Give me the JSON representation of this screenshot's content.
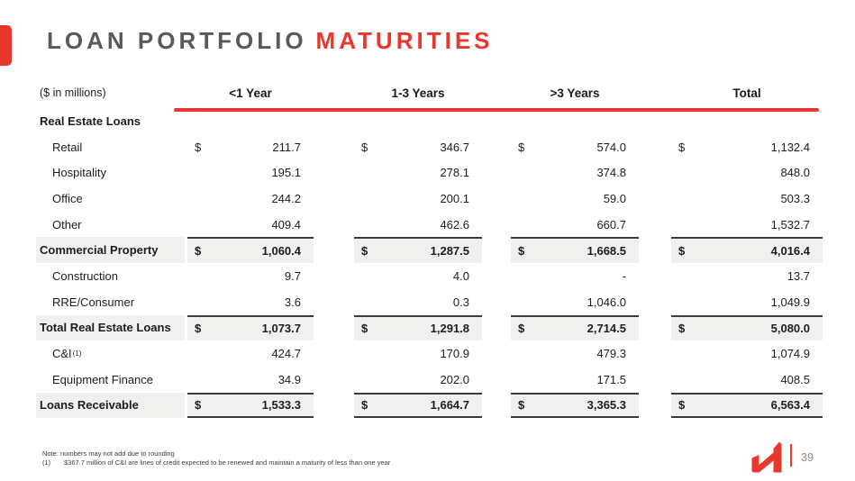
{
  "slide": {
    "title_primary": "LOAN PORTFOLIO",
    "title_accent": "MATURITIES",
    "units_label": "($ in millions)"
  },
  "colors": {
    "accent_red": "#e9372d",
    "title_gray": "#58595b",
    "row_shade": "#f0f0ef",
    "rule_dark": "#3b3b3b"
  },
  "table": {
    "columns": [
      "<1 Year",
      "1-3 Years",
      ">3 Years",
      "Total"
    ],
    "rows": [
      {
        "label": "Real Estate Loans",
        "bold": true,
        "indent": false
      },
      {
        "label": "Retail",
        "indent": true,
        "dollar": true,
        "values": [
          "211.7",
          "346.7",
          "574.0",
          "1,132.4"
        ]
      },
      {
        "label": "Hospitality",
        "indent": true,
        "values": [
          "195.1",
          "278.1",
          "374.8",
          "848.0"
        ]
      },
      {
        "label": "Office",
        "indent": true,
        "values": [
          "244.2",
          "200.1",
          "59.0",
          "503.3"
        ]
      },
      {
        "label": "Other",
        "indent": true,
        "values": [
          "409.4",
          "462.6",
          "660.7",
          "1,532.7"
        ]
      },
      {
        "label": "Commercial Property",
        "bold": true,
        "shaded": true,
        "border_top": true,
        "dollar": true,
        "values": [
          "1,060.4",
          "1,287.5",
          "1,668.5",
          "4,016.4"
        ]
      },
      {
        "label": "Construction",
        "indent": true,
        "values": [
          "9.7",
          "4.0",
          "-",
          "13.7"
        ]
      },
      {
        "label": "RRE/Consumer",
        "indent": true,
        "values": [
          "3.6",
          "0.3",
          "1,046.0",
          "1,049.9"
        ]
      },
      {
        "label": "Total Real Estate Loans",
        "bold": true,
        "shaded": true,
        "border_top": true,
        "dollar": true,
        "values": [
          "1,073.7",
          "1,291.8",
          "2,714.5",
          "5,080.0"
        ]
      },
      {
        "label": "C&I",
        "label_sup": "(1)",
        "indent": true,
        "values": [
          "424.7",
          "170.9",
          "479.3",
          "1,074.9"
        ]
      },
      {
        "label": "Equipment Finance",
        "indent": true,
        "values": [
          "34.9",
          "202.0",
          "171.5",
          "408.5"
        ]
      },
      {
        "label": "Loans Receivable",
        "bold": true,
        "shaded": true,
        "border_top": true,
        "border_bottom": true,
        "dollar": true,
        "values": [
          "1,533.3",
          "1,664.7",
          "3,365.3",
          "6,563.4"
        ]
      }
    ]
  },
  "footnotes": {
    "note": "Note: numbers may not add due to rounding",
    "item1_marker": "(1)",
    "item1_text": "$367.7 million of C&I are lines of credit expected to be renewed and maintain a maturity of less than one year"
  },
  "footer": {
    "page_number": "39"
  }
}
